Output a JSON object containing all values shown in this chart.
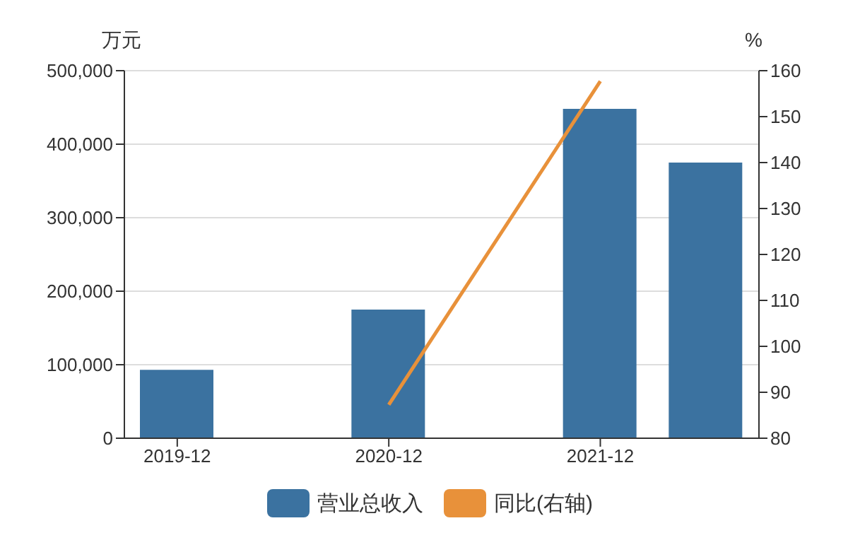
{
  "chart_data": {
    "type": "bar",
    "ylabel": "万元",
    "y2label": "%",
    "categories": [
      "2019-12",
      null,
      "2020-12",
      null,
      "2021-12",
      null
    ],
    "series": [
      {
        "name": "营业总收入",
        "color": "#3b72a0",
        "values": [
          93000,
          null,
          175000,
          null,
          448000,
          375000
        ]
      },
      {
        "name": "同比(右轴)",
        "type": "line",
        "axis": "y2",
        "color": "#e8913a",
        "values": [
          null,
          null,
          87.3,
          null,
          157.7,
          null
        ]
      }
    ],
    "ylim": [
      0,
      500000
    ],
    "yticks": [
      0,
      {
        "value": 100000,
        "label": "100,000"
      },
      {
        "value": 200000,
        "label": "200,000"
      },
      {
        "value": 300000,
        "label": "300,000"
      },
      {
        "value": 400000,
        "label": "400,000"
      },
      {
        "value": 500000,
        "label": "500,000"
      }
    ],
    "y2lim": [
      80,
      160
    ],
    "y2ticks": [
      80,
      90,
      100,
      110,
      120,
      130,
      140,
      150,
      160
    ],
    "grid": "y",
    "legend": "bottom",
    "marker": "none",
    "line_style": "solid"
  }
}
